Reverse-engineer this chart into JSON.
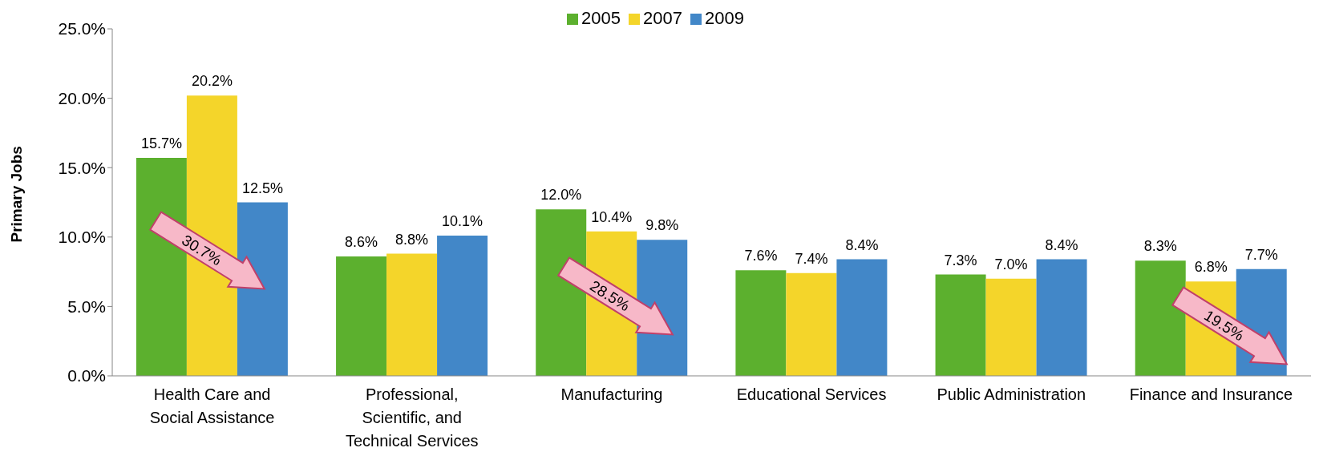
{
  "chart_data": {
    "type": "bar",
    "ylabel": "Primary Jobs",
    "categories": [
      "Health Care and Social Assistance",
      "Professional, Scientific, and Technical Services",
      "Manufacturing",
      "Educational Services",
      "Public Administration",
      "Finance and Insurance"
    ],
    "series": [
      {
        "name": "2005",
        "color": "#5cb02e",
        "values": [
          15.7,
          8.6,
          12.0,
          7.6,
          7.3,
          8.3
        ],
        "value_labels": [
          "15.7%",
          "8.6%",
          "12.0%",
          "7.6%",
          "7.3%",
          "8.3%"
        ]
      },
      {
        "name": "2007",
        "color": "#f4d52a",
        "values": [
          20.2,
          8.8,
          10.4,
          7.4,
          7.0,
          6.8
        ],
        "value_labels": [
          "20.2%",
          "8.8%",
          "10.4%",
          "7.4%",
          "7.0%",
          "6.8%"
        ]
      },
      {
        "name": "2009",
        "color": "#4287c8",
        "values": [
          12.5,
          10.1,
          9.8,
          8.4,
          8.4,
          7.7
        ],
        "value_labels": [
          "12.5%",
          "10.1%",
          "9.8%",
          "8.4%",
          "8.4%",
          "7.7%"
        ]
      }
    ],
    "ylim": [
      0,
      25
    ],
    "yticks": [
      {
        "value": 0,
        "label": "0.0%"
      },
      {
        "value": 5,
        "label": "5.0%"
      },
      {
        "value": 10,
        "label": "10.0%"
      },
      {
        "value": 15,
        "label": "15.0%"
      },
      {
        "value": 20,
        "label": "20.0%"
      },
      {
        "value": 25,
        "label": "25.0%"
      }
    ],
    "grid": false,
    "legend": "top",
    "annotations": [
      "30.7%",
      "28.5%",
      "19.5%"
    ]
  }
}
